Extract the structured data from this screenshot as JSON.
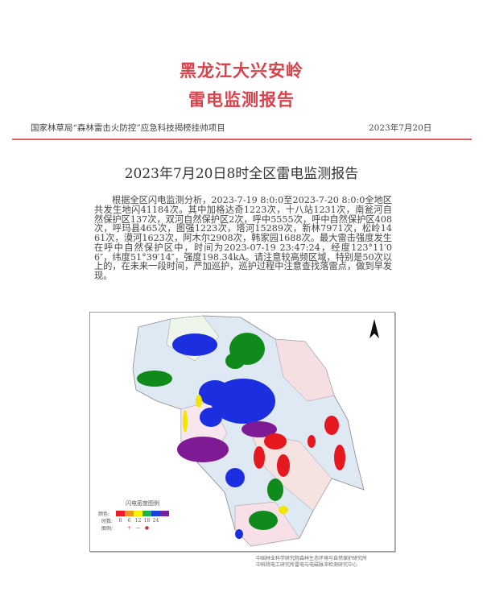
{
  "header": {
    "title_line1": "黑龙江大兴安岭",
    "title_line2": "雷电监测报告",
    "project": "国家林草局“森林雷击火防控”应急科技揭榜挂帅项目",
    "date": "2023年7月20日",
    "rule_color": "#e06068",
    "title_color": "#d9424a"
  },
  "report": {
    "heading": "2023年7月20日8时全区雷电监测报告",
    "body": "根据全区闪电监测分析，2023-7-19 8:0:0至2023-7-20 8:0:0全地区共发生地闪41184次。其中加格达奇1223次，十八站1231次，南瓮河自然保护区137次，双河自然保护区2次，呼中5555次，呼中自然保护区408次，呼玛县465次，图强1223次，塔河15289次，新林7971次，松岭1461次，漠河1623次，阿木尔2908次，韩家园1688次。最大雷击强度发生在呼中自然保护区中，时间为2023-07-19 23:47:24，经度123°11′06″，纬度51°39′14″，强度198.34kA。请注意较高频区域，特别是50次以上的，在未来一段时间，严加巡护，巡护过程中注意查找落雷点，做到早发现。"
  },
  "map": {
    "north_icon": "north-arrow-icon",
    "legend": {
      "title": "闪电密度图例",
      "color_label": "颜色:",
      "colors": [
        "#ee1c24",
        "#f7941d",
        "#fff200",
        "#22b14c",
        "#1b3fd8",
        "#7f1f9a"
      ],
      "tick_label": "时数:",
      "ticks": [
        "0",
        "6",
        "12",
        "18",
        "24"
      ],
      "symbol_label": "图例:",
      "symbols": [
        "+",
        "—",
        "●"
      ]
    }
  },
  "credits": [
    "中国林业科学研究院森林生态环境与自然保护研究所",
    "中科院电工研究所雷电与电磁脉冲检测研究中心"
  ]
}
